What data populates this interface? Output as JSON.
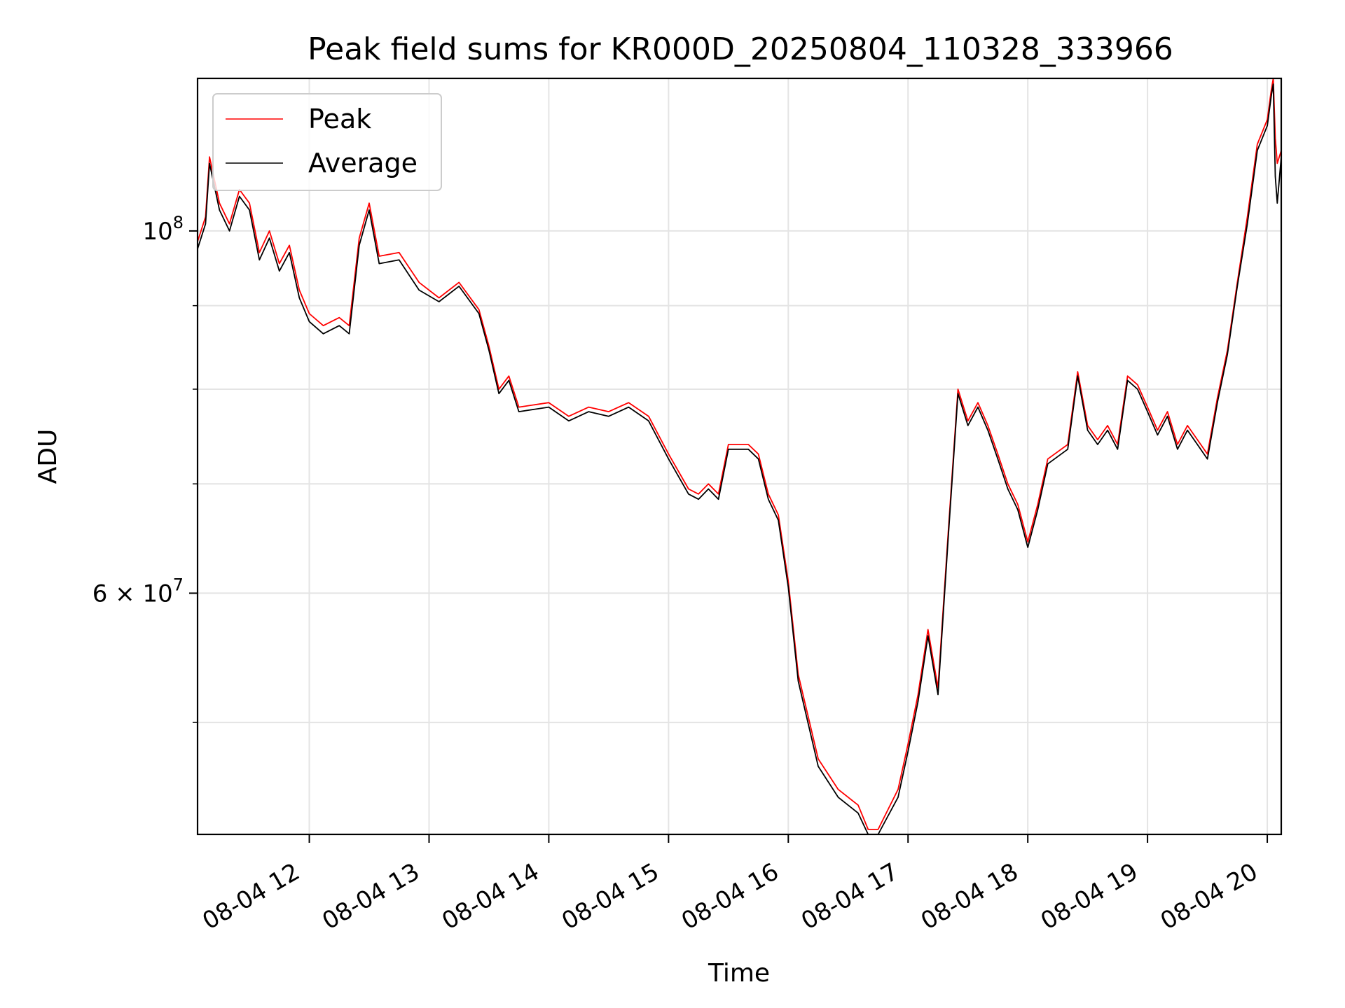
{
  "chart_data": {
    "type": "line",
    "title": "Peak field sums for KR000D_20250804_110328_333966",
    "xlabel": "Time",
    "ylabel": "ADU",
    "yscale": "log",
    "grid": true,
    "legend_position": "top-left",
    "xlim": [
      "2025-08-04 11:04",
      "2025-08-04 20:07"
    ],
    "ylim": [
      42700000,
      124000000
    ],
    "x_ticks": [
      {
        "value": "2025-08-04 12:00",
        "label": "08-04 12"
      },
      {
        "value": "2025-08-04 13:00",
        "label": "08-04 13"
      },
      {
        "value": "2025-08-04 14:00",
        "label": "08-04 14"
      },
      {
        "value": "2025-08-04 15:00",
        "label": "08-04 15"
      },
      {
        "value": "2025-08-04 16:00",
        "label": "08-04 16"
      },
      {
        "value": "2025-08-04 17:00",
        "label": "08-04 17"
      },
      {
        "value": "2025-08-04 18:00",
        "label": "08-04 18"
      },
      {
        "value": "2025-08-04 19:00",
        "label": "08-04 19"
      },
      {
        "value": "2025-08-04 20:00",
        "label": "08-04 20"
      }
    ],
    "y_major_ticks": [
      {
        "value": 100000000,
        "base": "10",
        "exp": "8"
      },
      {
        "value": 60000000,
        "mantissa": "6",
        "base": "10",
        "exp": "7"
      }
    ],
    "y_minor_ticks": [
      50000000,
      70000000,
      80000000,
      90000000
    ],
    "colors": {
      "Peak": "#ff0000",
      "Average": "#000000"
    },
    "series": [
      {
        "name": "Peak",
        "x": [
          "2025-08-04 11:04",
          "2025-08-04 11:08",
          "2025-08-04 11:10",
          "2025-08-04 11:15",
          "2025-08-04 11:20",
          "2025-08-04 11:25",
          "2025-08-04 11:30",
          "2025-08-04 11:35",
          "2025-08-04 11:40",
          "2025-08-04 11:45",
          "2025-08-04 11:50",
          "2025-08-04 11:55",
          "2025-08-04 12:00",
          "2025-08-04 12:07",
          "2025-08-04 12:15",
          "2025-08-04 12:20",
          "2025-08-04 12:25",
          "2025-08-04 12:30",
          "2025-08-04 12:35",
          "2025-08-04 12:45",
          "2025-08-04 12:55",
          "2025-08-04 13:05",
          "2025-08-04 13:15",
          "2025-08-04 13:25",
          "2025-08-04 13:30",
          "2025-08-04 13:35",
          "2025-08-04 13:40",
          "2025-08-04 13:45",
          "2025-08-04 14:00",
          "2025-08-04 14:10",
          "2025-08-04 14:20",
          "2025-08-04 14:30",
          "2025-08-04 14:40",
          "2025-08-04 14:50",
          "2025-08-04 15:00",
          "2025-08-04 15:10",
          "2025-08-04 15:15",
          "2025-08-04 15:20",
          "2025-08-04 15:25",
          "2025-08-04 15:30",
          "2025-08-04 15:40",
          "2025-08-04 15:45",
          "2025-08-04 15:50",
          "2025-08-04 15:55",
          "2025-08-04 16:00",
          "2025-08-04 16:05",
          "2025-08-04 16:15",
          "2025-08-04 16:25",
          "2025-08-04 16:35",
          "2025-08-04 16:40",
          "2025-08-04 16:45",
          "2025-08-04 16:55",
          "2025-08-04 17:00",
          "2025-08-04 17:05",
          "2025-08-04 17:10",
          "2025-08-04 17:15",
          "2025-08-04 17:20",
          "2025-08-04 17:25",
          "2025-08-04 17:30",
          "2025-08-04 17:35",
          "2025-08-04 17:40",
          "2025-08-04 17:45",
          "2025-08-04 17:50",
          "2025-08-04 17:55",
          "2025-08-04 18:00",
          "2025-08-04 18:05",
          "2025-08-04 18:10",
          "2025-08-04 18:20",
          "2025-08-04 18:25",
          "2025-08-04 18:30",
          "2025-08-04 18:35",
          "2025-08-04 18:40",
          "2025-08-04 18:45",
          "2025-08-04 18:50",
          "2025-08-04 18:55",
          "2025-08-04 19:00",
          "2025-08-04 19:05",
          "2025-08-04 19:10",
          "2025-08-04 19:15",
          "2025-08-04 19:20",
          "2025-08-04 19:25",
          "2025-08-04 19:30",
          "2025-08-04 19:35",
          "2025-08-04 19:40",
          "2025-08-04 19:45",
          "2025-08-04 19:50",
          "2025-08-04 19:55",
          "2025-08-04 20:00",
          "2025-08-04 20:02",
          "2025-08-04 20:03",
          "2025-08-04 20:04",
          "2025-08-04 20:05",
          "2025-08-04 20:07"
        ],
        "values": [
          98500000,
          102000000,
          111000000,
          104000000,
          101000000,
          106000000,
          104000000,
          97000000,
          100000000,
          95500000,
          98000000,
          92000000,
          89000000,
          87500000,
          88500000,
          87500000,
          99000000,
          104000000,
          96500000,
          97000000,
          93000000,
          91000000,
          93000000,
          89500000,
          85000000,
          80000000,
          81500000,
          78000000,
          78500000,
          77000000,
          78000000,
          77500000,
          78500000,
          77000000,
          73000000,
          69500000,
          69000000,
          70000000,
          69000000,
          74000000,
          74000000,
          73000000,
          69000000,
          67000000,
          61000000,
          53500000,
          47500000,
          45500000,
          44500000,
          43000000,
          43000000,
          45500000,
          48500000,
          52000000,
          57000000,
          52500000,
          65000000,
          80000000,
          76500000,
          78500000,
          76000000,
          73000000,
          70000000,
          68000000,
          64500000,
          68000000,
          72500000,
          74000000,
          82000000,
          76000000,
          74500000,
          76000000,
          74000000,
          81500000,
          80500000,
          78000000,
          75500000,
          77500000,
          74000000,
          76000000,
          74500000,
          73000000,
          79000000,
          84500000,
          93000000,
          102000000,
          113000000,
          117000000,
          122000000,
          124000000,
          114000000,
          110000000,
          112000000
        ]
      },
      {
        "name": "Average",
        "x": [
          "2025-08-04 11:04",
          "2025-08-04 11:08",
          "2025-08-04 11:10",
          "2025-08-04 11:15",
          "2025-08-04 11:20",
          "2025-08-04 11:25",
          "2025-08-04 11:30",
          "2025-08-04 11:35",
          "2025-08-04 11:40",
          "2025-08-04 11:45",
          "2025-08-04 11:50",
          "2025-08-04 11:55",
          "2025-08-04 12:00",
          "2025-08-04 12:07",
          "2025-08-04 12:15",
          "2025-08-04 12:20",
          "2025-08-04 12:25",
          "2025-08-04 12:30",
          "2025-08-04 12:35",
          "2025-08-04 12:45",
          "2025-08-04 12:55",
          "2025-08-04 13:05",
          "2025-08-04 13:15",
          "2025-08-04 13:25",
          "2025-08-04 13:30",
          "2025-08-04 13:35",
          "2025-08-04 13:40",
          "2025-08-04 13:45",
          "2025-08-04 14:00",
          "2025-08-04 14:10",
          "2025-08-04 14:20",
          "2025-08-04 14:30",
          "2025-08-04 14:40",
          "2025-08-04 14:50",
          "2025-08-04 15:00",
          "2025-08-04 15:10",
          "2025-08-04 15:15",
          "2025-08-04 15:20",
          "2025-08-04 15:25",
          "2025-08-04 15:30",
          "2025-08-04 15:40",
          "2025-08-04 15:45",
          "2025-08-04 15:50",
          "2025-08-04 15:55",
          "2025-08-04 16:00",
          "2025-08-04 16:05",
          "2025-08-04 16:15",
          "2025-08-04 16:25",
          "2025-08-04 16:35",
          "2025-08-04 16:40",
          "2025-08-04 16:45",
          "2025-08-04 16:55",
          "2025-08-04 17:00",
          "2025-08-04 17:05",
          "2025-08-04 17:10",
          "2025-08-04 17:15",
          "2025-08-04 17:20",
          "2025-08-04 17:25",
          "2025-08-04 17:30",
          "2025-08-04 17:35",
          "2025-08-04 17:40",
          "2025-08-04 17:45",
          "2025-08-04 17:50",
          "2025-08-04 17:55",
          "2025-08-04 18:00",
          "2025-08-04 18:05",
          "2025-08-04 18:10",
          "2025-08-04 18:20",
          "2025-08-04 18:25",
          "2025-08-04 18:30",
          "2025-08-04 18:35",
          "2025-08-04 18:40",
          "2025-08-04 18:45",
          "2025-08-04 18:50",
          "2025-08-04 18:55",
          "2025-08-04 19:00",
          "2025-08-04 19:05",
          "2025-08-04 19:10",
          "2025-08-04 19:15",
          "2025-08-04 19:20",
          "2025-08-04 19:25",
          "2025-08-04 19:30",
          "2025-08-04 19:35",
          "2025-08-04 19:40",
          "2025-08-04 19:45",
          "2025-08-04 19:50",
          "2025-08-04 19:55",
          "2025-08-04 20:00",
          "2025-08-04 20:02",
          "2025-08-04 20:03",
          "2025-08-04 20:04",
          "2025-08-04 20:05",
          "2025-08-04 20:07"
        ],
        "values": [
          97500000,
          101000000,
          110000000,
          103000000,
          100000000,
          105000000,
          103000000,
          96000000,
          99000000,
          94500000,
          97000000,
          91000000,
          88000000,
          86500000,
          87500000,
          86500000,
          98000000,
          103000000,
          95500000,
          96000000,
          92000000,
          90500000,
          92500000,
          89000000,
          84500000,
          79500000,
          81000000,
          77500000,
          78000000,
          76500000,
          77500000,
          77000000,
          78000000,
          76500000,
          72500000,
          69000000,
          68500000,
          69500000,
          68500000,
          73500000,
          73500000,
          72500000,
          68500000,
          66500000,
          60500000,
          53000000,
          47000000,
          45000000,
          44000000,
          42700000,
          42700000,
          45000000,
          48000000,
          51500000,
          56500000,
          52000000,
          64500000,
          79500000,
          76000000,
          78000000,
          75500000,
          72500000,
          69500000,
          67500000,
          64000000,
          67500000,
          72000000,
          73500000,
          81500000,
          75500000,
          74000000,
          75500000,
          73500000,
          81000000,
          80000000,
          77500000,
          75000000,
          77000000,
          73500000,
          75500000,
          74000000,
          72500000,
          78500000,
          84000000,
          92500000,
          101000000,
          112000000,
          116000000,
          121000000,
          123000000,
          108000000,
          104000000,
          111000000
        ]
      }
    ]
  }
}
